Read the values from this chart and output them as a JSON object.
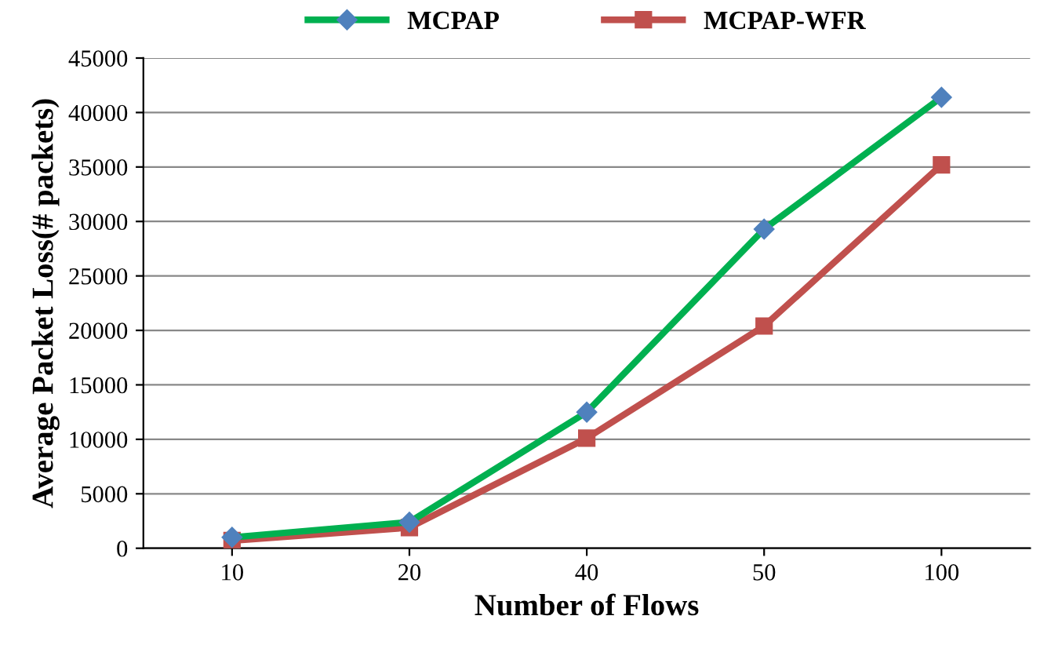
{
  "chart_data": {
    "type": "line",
    "xlabel": "Number of Flows",
    "ylabel": "Average Packet Loss(# packets)",
    "categories": [
      "10",
      "20",
      "40",
      "50",
      "100"
    ],
    "series": [
      {
        "name": "MCPAP",
        "color": "#00b050",
        "marker": "diamond",
        "values": [
          1000,
          2400,
          12500,
          29300,
          41400
        ]
      },
      {
        "name": "MCPAP-WFR",
        "color": "#c0504d",
        "marker": "square",
        "values": [
          700,
          1900,
          10100,
          20400,
          35200
        ]
      }
    ],
    "ylim": [
      0,
      45000
    ],
    "yticks": [
      0,
      5000,
      10000,
      15000,
      20000,
      25000,
      30000,
      35000,
      40000,
      45000
    ],
    "grid": "y",
    "legend": "top",
    "line_style": "solid"
  }
}
